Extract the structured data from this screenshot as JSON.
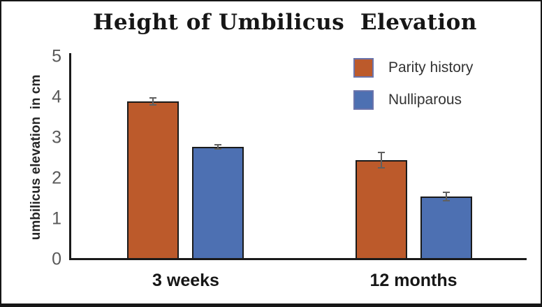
{
  "chart_data": {
    "type": "bar",
    "title": "Height of Umbilicus  Elevation",
    "xlabel": "",
    "ylabel": "umbilicus elevation  in cm",
    "categories": [
      "3 weeks",
      "12 months"
    ],
    "series": [
      {
        "name": "Parity history",
        "color": "#BC5A2B",
        "values": [
          3.9,
          2.45
        ],
        "errors": [
          0.1,
          0.2
        ]
      },
      {
        "name": "Nulliparous",
        "color": "#4D70B2",
        "values": [
          2.78,
          1.55
        ],
        "errors": [
          0.07,
          0.12
        ]
      }
    ],
    "ylim": [
      0,
      5
    ],
    "yticks": [
      0,
      1,
      2,
      3,
      4,
      5
    ],
    "grid": false,
    "legend_position": "top-right",
    "error_bars": true
  },
  "colors": {
    "axis": "#1a1a1a",
    "tick_label": "#595959",
    "error_bar": "#606060",
    "legend_swatch_border": "#6b74ab",
    "frame_border": "#161616",
    "background": "#ffffff"
  }
}
